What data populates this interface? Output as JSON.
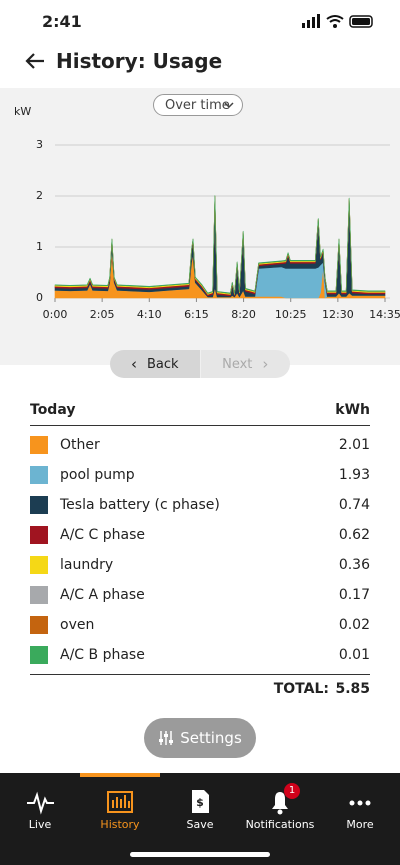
{
  "status": {
    "time": "2:41"
  },
  "header": {
    "title": "History: Usage"
  },
  "chart_data": {
    "type": "stacked-area",
    "mode": "Over time",
    "ylabel": "kW",
    "x": [
      0,
      40,
      85,
      93,
      100,
      140,
      145,
      151,
      157,
      165,
      250,
      300,
      355,
      362,
      366,
      372,
      390,
      405,
      418,
      424,
      430,
      465,
      470,
      476,
      483,
      489,
      499,
      505,
      530,
      540,
      600,
      612,
      618,
      624,
      690,
      698,
      704,
      711,
      716,
      722,
      745,
      753,
      760,
      772,
      780,
      788,
      830,
      875
    ],
    "xlim": [
      0,
      875
    ],
    "xticks": [
      {
        "value": 0,
        "label": "0:00"
      },
      {
        "value": 125,
        "label": "2:05"
      },
      {
        "value": 250,
        "label": "4:10"
      },
      {
        "value": 375,
        "label": "6:15"
      },
      {
        "value": 500,
        "label": "8:20"
      },
      {
        "value": 625,
        "label": "10:25"
      },
      {
        "value": 750,
        "label": "12:30"
      },
      {
        "value": 875,
        "label": "14:35"
      }
    ],
    "ylim": [
      0,
      3
    ],
    "yticks": [
      0,
      1,
      2,
      3
    ],
    "grid": true,
    "series": [
      {
        "name": "Other",
        "color": "#f7941d",
        "kwh": 2.01,
        "values": [
          0.15,
          0.14,
          0.15,
          0.28,
          0.15,
          0.14,
          0.3,
          0.95,
          0.3,
          0.15,
          0.12,
          0.15,
          0.18,
          0.7,
          0.85,
          0.3,
          0.15,
          0.02,
          0.02,
          0.2,
          0.02,
          0.02,
          0.05,
          0.02,
          0.1,
          0.02,
          0.15,
          0.03,
          0.03,
          0.03,
          0.03,
          0,
          0,
          0,
          0,
          0,
          0.1,
          0.6,
          0,
          0.03,
          0.03,
          0.1,
          0.03,
          0.03,
          0.1,
          0.05,
          0.05,
          0.05
        ]
      },
      {
        "name": "pool pump",
        "color": "#6cb4d1",
        "kwh": 1.93,
        "values": [
          0,
          0,
          0,
          0,
          0,
          0,
          0,
          0,
          0,
          0,
          0,
          0,
          0,
          0,
          0,
          0,
          0,
          0,
          0,
          0,
          0,
          0,
          0,
          0,
          0,
          0,
          0,
          0,
          0,
          0.55,
          0.58,
          0.58,
          0.58,
          0.58,
          0.58,
          0.6,
          0.55,
          0.1,
          0.3,
          0,
          0,
          0,
          0,
          0,
          0,
          0,
          0,
          0
        ]
      },
      {
        "name": "Tesla battery (c phase)",
        "color": "#1c3d52",
        "kwh": 0.74,
        "values": [
          0.05,
          0.05,
          0.05,
          0.05,
          0.05,
          0.05,
          0.05,
          0.15,
          0.05,
          0.05,
          0.05,
          0.05,
          0.05,
          0.2,
          0.25,
          0.05,
          0.05,
          0.02,
          0.05,
          1.75,
          0.05,
          0.02,
          0.2,
          0.02,
          0.55,
          0.05,
          1.1,
          0.1,
          0.05,
          0.05,
          0.06,
          0.1,
          0.25,
          0.1,
          0.1,
          0.9,
          0.1,
          0.2,
          0.05,
          0.05,
          0.05,
          1.0,
          0.05,
          0.05,
          1.8,
          0.05,
          0.03,
          0.03
        ]
      },
      {
        "name": "A/C C phase",
        "color": "#a01420",
        "kwh": 0.62,
        "values": [
          0.03,
          0.03,
          0.03,
          0.03,
          0.03,
          0.03,
          0.03,
          0.03,
          0.03,
          0.03,
          0.03,
          0.03,
          0.03,
          0.03,
          0.03,
          0.03,
          0.03,
          0.03,
          0.03,
          0.03,
          0.03,
          0.03,
          0.03,
          0.03,
          0.03,
          0.03,
          0.03,
          0.03,
          0.03,
          0.03,
          0.03,
          0.03,
          0.03,
          0.03,
          0.03,
          0.03,
          0.03,
          0.03,
          0.03,
          0.03,
          0.03,
          0.03,
          0.03,
          0.03,
          0.03,
          0.03,
          0.03,
          0.03
        ]
      },
      {
        "name": "laundry",
        "color": "#f5d816",
        "kwh": 0.36,
        "values": [
          0.02,
          0.02,
          0.02,
          0.02,
          0.02,
          0.02,
          0.02,
          0.02,
          0.02,
          0.02,
          0.02,
          0.02,
          0.02,
          0.02,
          0.02,
          0.02,
          0.02,
          0.02,
          0.02,
          0.02,
          0.02,
          0.02,
          0.02,
          0.02,
          0.02,
          0.02,
          0.02,
          0.02,
          0.02,
          0.02,
          0.02,
          0.02,
          0.02,
          0.02,
          0.02,
          0.02,
          0.02,
          0.02,
          0.02,
          0.02,
          0.02,
          0.02,
          0.02,
          0.02,
          0.02,
          0.02,
          0.02,
          0.02
        ]
      },
      {
        "name": "A/C A phase",
        "color": "#a7a9ac",
        "kwh": 0.17,
        "values": [
          0,
          0,
          0,
          0,
          0,
          0,
          0,
          0,
          0,
          0,
          0,
          0,
          0,
          0,
          0,
          0,
          0,
          0,
          0,
          0,
          0,
          0,
          0,
          0,
          0,
          0,
          0,
          0,
          0,
          0,
          0,
          0,
          0,
          0,
          0,
          0,
          0,
          0,
          0,
          0,
          0,
          0,
          0,
          0,
          0,
          0,
          0,
          0
        ]
      },
      {
        "name": "oven",
        "color": "#c4640f",
        "kwh": 0.02,
        "values": [
          0,
          0,
          0,
          0,
          0,
          0,
          0,
          0,
          0,
          0,
          0,
          0,
          0,
          0,
          0,
          0,
          0,
          0,
          0,
          0,
          0,
          0,
          0,
          0,
          0,
          0,
          0,
          0,
          0,
          0,
          0,
          0,
          0,
          0,
          0,
          0,
          0,
          0,
          0,
          0,
          0,
          0,
          0,
          0,
          0,
          0,
          0,
          0
        ]
      },
      {
        "name": "A/C B phase",
        "color": "#3aaa5c",
        "kwh": 0.01,
        "values": [
          0.01,
          0.01,
          0.01,
          0.01,
          0.01,
          0.01,
          0.01,
          0.01,
          0.01,
          0.01,
          0.01,
          0.01,
          0.01,
          0.01,
          0.01,
          0.01,
          0.01,
          0.01,
          0.01,
          0.01,
          0.01,
          0.01,
          0.01,
          0.01,
          0.01,
          0.01,
          0.01,
          0.01,
          0.01,
          0.01,
          0.01,
          0.01,
          0.01,
          0.01,
          0.01,
          0.01,
          0.01,
          0.01,
          0.01,
          0.01,
          0.01,
          0.01,
          0.01,
          0.01,
          0.01,
          0.01,
          0.01,
          0.01
        ]
      }
    ]
  },
  "pager": {
    "back": "Back",
    "next": "Next"
  },
  "table": {
    "header": [
      "Today",
      "kWh"
    ],
    "total_label": "TOTAL:",
    "total": 5.85
  },
  "settings": "Settings",
  "nav": {
    "items": [
      "Live",
      "History",
      "Save",
      "Notifications",
      "More"
    ],
    "badge": "1"
  }
}
